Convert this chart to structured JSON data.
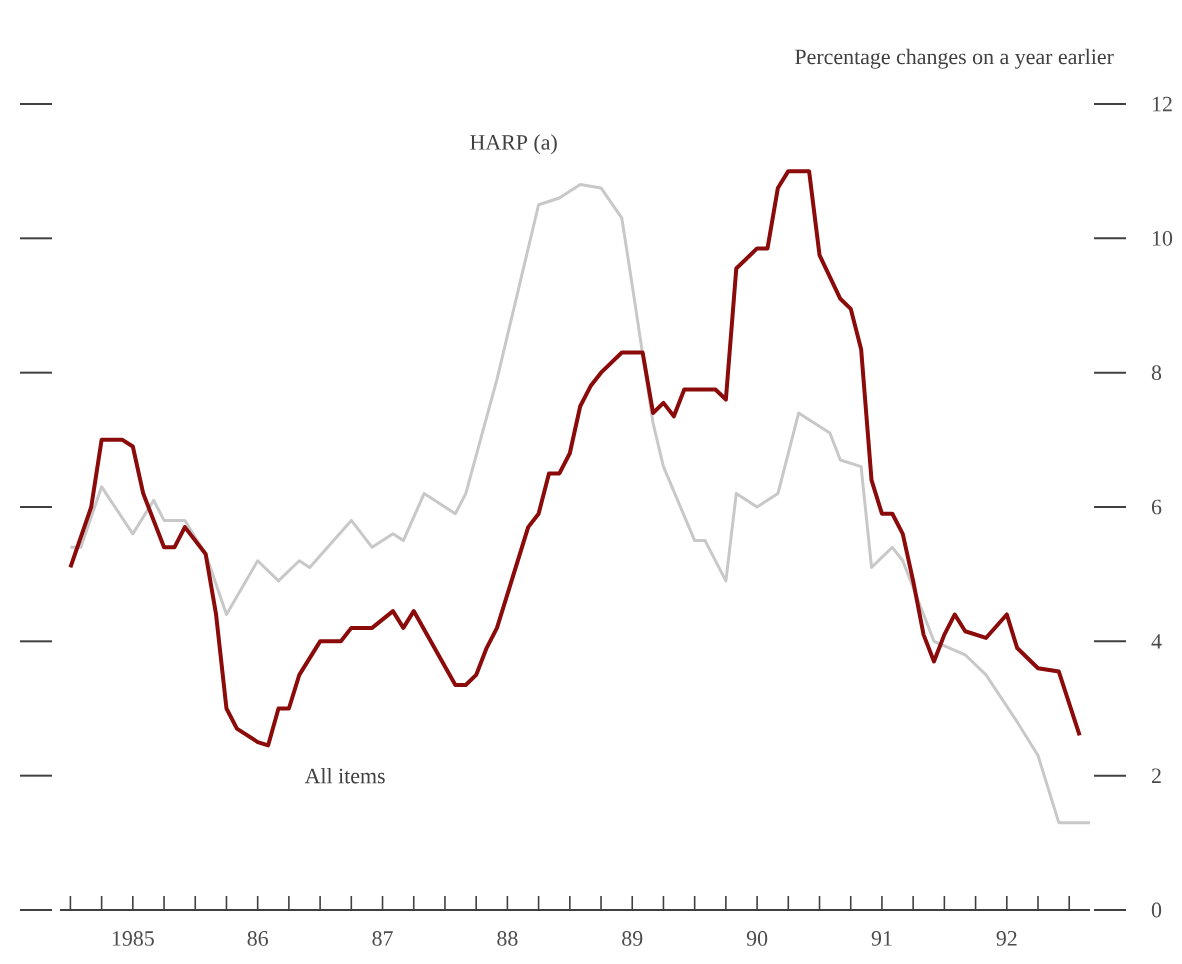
{
  "chart_data": {
    "type": "line",
    "ylabel": "Percentage changes on a year earlier",
    "xlim": [
      "1984-12",
      "1993-03"
    ],
    "xticks": [
      {
        "value": "1985-01-01",
        "label": null
      },
      {
        "value": "1985-04-01",
        "label": null
      },
      {
        "value": "1985-07-01",
        "label": "1985"
      },
      {
        "value": "1985-10-01",
        "label": null
      },
      {
        "value": "1986-01-01",
        "label": null
      },
      {
        "value": "1986-04-01",
        "label": null
      },
      {
        "value": "1986-07-01",
        "label": "86"
      },
      {
        "value": "1986-10-01",
        "label": null
      },
      {
        "value": "1987-01-01",
        "label": null
      },
      {
        "value": "1987-04-01",
        "label": null
      },
      {
        "value": "1987-07-01",
        "label": "87"
      },
      {
        "value": "1987-10-01",
        "label": null
      },
      {
        "value": "1988-01-01",
        "label": null
      },
      {
        "value": "1988-04-01",
        "label": null
      },
      {
        "value": "1988-07-01",
        "label": "88"
      },
      {
        "value": "1988-10-01",
        "label": null
      },
      {
        "value": "1989-01-01",
        "label": null
      },
      {
        "value": "1989-04-01",
        "label": null
      },
      {
        "value": "1989-07-01",
        "label": "89"
      },
      {
        "value": "1989-10-01",
        "label": null
      },
      {
        "value": "1990-01-01",
        "label": null
      },
      {
        "value": "1990-04-01",
        "label": null
      },
      {
        "value": "1990-07-01",
        "label": "90"
      },
      {
        "value": "1990-10-01",
        "label": null
      },
      {
        "value": "1991-01-01",
        "label": null
      },
      {
        "value": "1991-04-01",
        "label": null
      },
      {
        "value": "1991-07-01",
        "label": "91"
      },
      {
        "value": "1991-10-01",
        "label": null
      },
      {
        "value": "1992-01-01",
        "label": null
      },
      {
        "value": "1992-04-01",
        "label": null
      },
      {
        "value": "1992-07-01",
        "label": "92"
      },
      {
        "value": "1992-10-01",
        "label": null
      },
      {
        "value": "1993-01-01",
        "label": null
      }
    ],
    "ylim": [
      0,
      12
    ],
    "yticks": [
      0,
      2,
      4,
      6,
      8,
      10,
      12
    ],
    "legend": false,
    "marker": "none",
    "line_style": "solid",
    "series": [
      {
        "name": "HARP (a)",
        "color": "#c8c8c8",
        "x": [
          "1985-01",
          "1985-02",
          "1985-04",
          "1985-07",
          "1985-09",
          "1985-10",
          "1985-12",
          "1986-02",
          "1986-04",
          "1986-07",
          "1986-09",
          "1986-11",
          "1986-12",
          "1987-04",
          "1987-05",
          "1987-06",
          "1987-08",
          "1987-09",
          "1987-11",
          "1988-02",
          "1988-03",
          "1988-06",
          "1988-08",
          "1988-10",
          "1988-12",
          "1989-02",
          "1989-04",
          "1989-06",
          "1989-07",
          "1989-09",
          "1989-10",
          "1990-01",
          "1990-02",
          "1990-04",
          "1990-05",
          "1990-07",
          "1990-09",
          "1990-11",
          "1990-12",
          "1991-02",
          "1991-03",
          "1991-05",
          "1991-06",
          "1991-08",
          "1991-09",
          "1991-12",
          "1992-03",
          "1992-05",
          "1992-08",
          "1992-10",
          "1992-12",
          "1993-03"
        ],
        "values": [
          5.4,
          5.4,
          6.3,
          5.6,
          6.1,
          5.8,
          5.8,
          5.3,
          4.4,
          5.2,
          4.9,
          5.2,
          5.1,
          5.8,
          5.6,
          5.4,
          5.6,
          5.5,
          6.2,
          5.9,
          6.2,
          7.9,
          9.2,
          10.5,
          10.6,
          10.8,
          10.75,
          10.3,
          9.3,
          7.25,
          6.6,
          5.5,
          5.5,
          4.9,
          6.2,
          6.0,
          6.2,
          7.4,
          7.3,
          7.1,
          6.7,
          6.6,
          5.1,
          5.4,
          5.2,
          4.0,
          3.8,
          3.5,
          2.8,
          2.3,
          1.3,
          1.3
        ]
      },
      {
        "name": "All items",
        "color": "#8b0a0a",
        "x": [
          "1985-01",
          "1985-03",
          "1985-04",
          "1985-06",
          "1985-07",
          "1985-08",
          "1985-10",
          "1985-11",
          "1985-12",
          "1986-02",
          "1986-03",
          "1986-04",
          "1986-05",
          "1986-07",
          "1986-08",
          "1986-09",
          "1986-10",
          "1986-11",
          "1987-01",
          "1987-03",
          "1987-04",
          "1987-06",
          "1987-08",
          "1987-09",
          "1987-10",
          "1988-02",
          "1988-03",
          "1988-04",
          "1988-05",
          "1988-06",
          "1988-07",
          "1988-09",
          "1988-10",
          "1988-11",
          "1988-12",
          "1989-01",
          "1989-02",
          "1989-03",
          "1989-04",
          "1989-06",
          "1989-08",
          "1989-09",
          "1989-10",
          "1989-11",
          "1989-12",
          "1990-03",
          "1990-04",
          "1990-05",
          "1990-07",
          "1990-08",
          "1990-09",
          "1990-10",
          "1990-12",
          "1991-01",
          "1991-03",
          "1991-04",
          "1991-05",
          "1991-06",
          "1991-07",
          "1991-08",
          "1991-09",
          "1991-10",
          "1991-11",
          "1991-12",
          "1992-01",
          "1992-02",
          "1992-03",
          "1992-05",
          "1992-07",
          "1992-08",
          "1992-10",
          "1992-12",
          "1993-02"
        ],
        "values": [
          5.1,
          6.0,
          7.0,
          7.0,
          6.9,
          6.2,
          5.4,
          5.4,
          5.7,
          5.3,
          4.4,
          3.0,
          2.7,
          2.5,
          2.45,
          3.0,
          3.0,
          3.5,
          4.0,
          4.0,
          4.2,
          4.2,
          4.45,
          4.2,
          4.45,
          3.35,
          3.35,
          3.5,
          3.9,
          4.2,
          4.7,
          5.7,
          5.9,
          6.5,
          6.5,
          6.8,
          7.5,
          7.8,
          8.0,
          8.3,
          8.3,
          7.4,
          7.55,
          7.35,
          7.75,
          7.75,
          7.6,
          9.55,
          9.85,
          9.85,
          10.75,
          11.0,
          11.0,
          9.75,
          9.1,
          8.95,
          8.35,
          6.4,
          5.9,
          5.9,
          5.6,
          4.9,
          4.1,
          3.7,
          4.1,
          4.4,
          4.15,
          4.05,
          4.4,
          3.9,
          3.6,
          3.55,
          2.6
        ]
      }
    ]
  }
}
